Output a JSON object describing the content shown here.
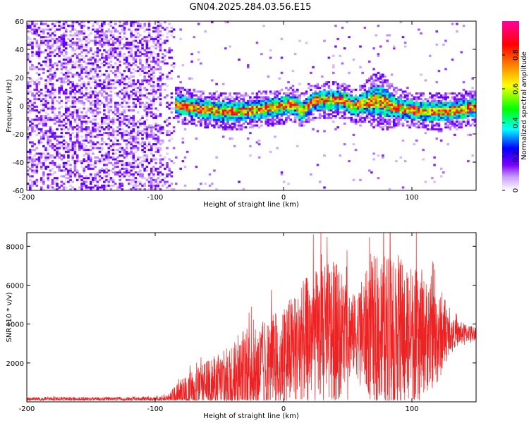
{
  "title": "GN04.2025.284.03.56.E15",
  "chart_data": [
    {
      "type": "heatmap",
      "title": "GN04.2025.284.03.56.E15",
      "xlabel": "Height of straight line (km)",
      "ylabel": "Frequency (Hz)",
      "xlim": [
        -200,
        150
      ],
      "ylim": [
        -60,
        60
      ],
      "xticks": [
        -200,
        -100,
        0,
        100
      ],
      "yticks": [
        -60,
        -40,
        -20,
        0,
        20,
        40,
        60
      ],
      "noise_region_x": [
        -200,
        -85
      ],
      "signal_region_x": [
        -92,
        150
      ],
      "signal_center_hz": 0,
      "signal_halfwidth_hz": 8,
      "colorbar": {
        "label": "Normalized spectral amplitude",
        "range": [
          0,
          1
        ],
        "ticks": [
          0,
          0.2,
          0.4,
          0.6,
          0.8
        ],
        "colors": [
          "#ffffff",
          "#7a00ff",
          "#0000ff",
          "#00ffff",
          "#00ff00",
          "#ffff00",
          "#ff8000",
          "#ff0000",
          "#ff00a0"
        ]
      }
    },
    {
      "type": "line",
      "xlabel": "Height of straight line (km)",
      "ylabel": "SNR (10 * v/v)",
      "xlim": [
        -200,
        150
      ],
      "ylim": [
        0,
        8700
      ],
      "xticks": [
        -200,
        -100,
        0,
        100
      ],
      "yticks": [
        2000,
        4000,
        6000,
        8000
      ],
      "color": "#ee2222",
      "envelope": {
        "x": [
          -200,
          -100,
          -90,
          -80,
          -60,
          -40,
          -20,
          0,
          20,
          40,
          55,
          70,
          85,
          100,
          120,
          130,
          150
        ],
        "base": [
          150,
          150,
          180,
          400,
          800,
          1200,
          1700,
          2300,
          3300,
          3600,
          3500,
          3700,
          3700,
          3500,
          3300,
          3500,
          3550
        ],
        "amp": [
          100,
          100,
          200,
          800,
          1300,
          1800,
          2300,
          2700,
          3300,
          3800,
          2000,
          3800,
          4200,
          3500,
          2500,
          800,
          300
        ]
      }
    }
  ]
}
